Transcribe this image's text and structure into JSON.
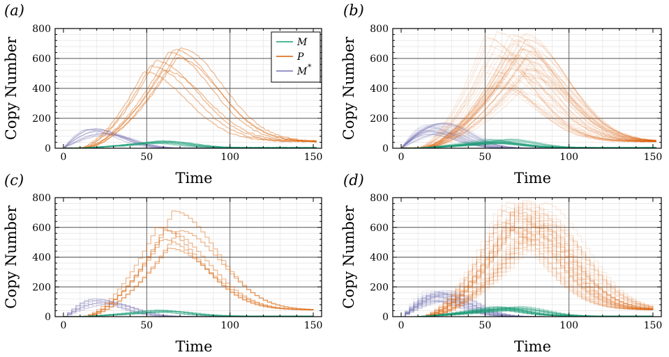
{
  "colors": {
    "M": "#1b9e77",
    "P": "#d95f02",
    "M_star": "#7570b3"
  },
  "legend": {
    "placement": "top-right",
    "panel": "a",
    "entries": [
      {
        "key": "M",
        "label": "M",
        "sup": ""
      },
      {
        "key": "P",
        "label": "P",
        "sup": ""
      },
      {
        "key": "M_star",
        "label": "M",
        "sup": "*"
      }
    ]
  },
  "chart_data": [
    {
      "panel": "(a)",
      "type": "line",
      "style": "smooth",
      "trajectories": 8,
      "xlabel": "Time",
      "ylabel": "Copy Number",
      "xlim": [
        -5,
        155
      ],
      "ylim": [
        0,
        800
      ],
      "xticks": [
        "0",
        "50",
        "100",
        "150"
      ],
      "yticks": [
        "0",
        "200",
        "400",
        "600",
        "800"
      ],
      "grid": true,
      "series": [
        {
          "name": "M",
          "color_key": "M",
          "peaks": [
            [
              57,
              42
            ],
            [
              60,
              48
            ],
            [
              54,
              38
            ],
            [
              63,
              45
            ],
            [
              50,
              35
            ],
            [
              58,
              50
            ],
            [
              66,
              40
            ],
            [
              55,
              44
            ]
          ]
        },
        {
          "name": "P",
          "color_key": "P",
          "peaks": [
            [
              70,
              670
            ],
            [
              55,
              585
            ],
            [
              63,
              640
            ],
            [
              48,
              510
            ],
            [
              52,
              550
            ],
            [
              68,
              605
            ],
            [
              60,
              520
            ],
            [
              66,
              660
            ]
          ]
        },
        {
          "name": "M*",
          "color_key": "M_star",
          "peaks": [
            [
              18,
              128
            ],
            [
              22,
              120
            ],
            [
              20,
              110
            ],
            [
              25,
              95
            ],
            [
              15,
              125
            ],
            [
              28,
              90
            ],
            [
              24,
              100
            ],
            [
              19,
              130
            ]
          ]
        }
      ]
    },
    {
      "panel": "(b)",
      "type": "line",
      "style": "smooth",
      "trajectories": 50,
      "xlabel": "Time",
      "ylabel": "Copy Number",
      "xlim": [
        -5,
        155
      ],
      "ylim": [
        0,
        800
      ],
      "xticks": [
        "0",
        "50",
        "100",
        "150"
      ],
      "yticks": [
        "0",
        "200",
        "400",
        "600",
        "800"
      ],
      "grid": true,
      "series": [
        {
          "name": "M",
          "color_key": "M",
          "peak_t": [
            48,
            68
          ],
          "peak_y": [
            30,
            65
          ]
        },
        {
          "name": "P",
          "color_key": "P",
          "peak_t": [
            48,
            80
          ],
          "peak_y": [
            380,
            800
          ]
        },
        {
          "name": "M*",
          "color_key": "M_star",
          "peak_t": [
            14,
            30
          ],
          "peak_y": [
            90,
            170
          ]
        }
      ]
    },
    {
      "panel": "(c)",
      "type": "line",
      "style": "step",
      "trajectories": 6,
      "xlabel": "Time",
      "ylabel": "Copy Number",
      "xlim": [
        -5,
        155
      ],
      "ylim": [
        0,
        800
      ],
      "xticks": [
        "0",
        "50",
        "100",
        "150"
      ],
      "yticks": [
        "0",
        "200",
        "400",
        "600",
        "800"
      ],
      "grid": true,
      "series": [
        {
          "name": "M",
          "color_key": "M",
          "peaks": [
            [
              55,
              45
            ],
            [
              60,
              38
            ],
            [
              50,
              42
            ],
            [
              64,
              35
            ],
            [
              57,
              40
            ],
            [
              53,
              30
            ]
          ]
        },
        {
          "name": "P",
          "color_key": "P",
          "peaks": [
            [
              65,
              710
            ],
            [
              55,
              600
            ],
            [
              60,
              580
            ],
            [
              68,
              580
            ],
            [
              58,
              520
            ],
            [
              62,
              460
            ]
          ]
        },
        {
          "name": "M*",
          "color_key": "M_star",
          "peaks": [
            [
              18,
              120
            ],
            [
              22,
              112
            ],
            [
              25,
              100
            ],
            [
              20,
              90
            ],
            [
              28,
              85
            ],
            [
              16,
              108
            ]
          ]
        }
      ]
    },
    {
      "panel": "(d)",
      "type": "line",
      "style": "step",
      "trajectories": 50,
      "xlabel": "Time",
      "ylabel": "Copy Number",
      "xlim": [
        -5,
        155
      ],
      "ylim": [
        0,
        800
      ],
      "xticks": [
        "0",
        "50",
        "100",
        "150"
      ],
      "yticks": [
        "0",
        "200",
        "400",
        "600",
        "800"
      ],
      "grid": true,
      "series": [
        {
          "name": "M",
          "color_key": "M",
          "peak_t": [
            50,
            72
          ],
          "peak_y": [
            40,
            70
          ]
        },
        {
          "name": "P",
          "color_key": "P",
          "peak_t": [
            55,
            85
          ],
          "peak_y": [
            520,
            800
          ]
        },
        {
          "name": "M*",
          "color_key": "M_star",
          "peak_t": [
            15,
            30
          ],
          "peak_y": [
            100,
            180
          ]
        }
      ]
    }
  ]
}
